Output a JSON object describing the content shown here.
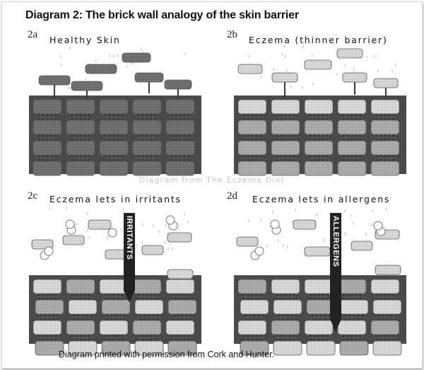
{
  "title": "Diagram 2: The brick wall analogy of the skin barrier",
  "panels": [
    {
      "id": "2a",
      "label": "Healthy Skin"
    },
    {
      "id": "2b",
      "label": "Eczema (thinner barrier)"
    },
    {
      "id": "2c",
      "label": "Eczema lets in irritants",
      "arrow_label": "IRRITANTS"
    },
    {
      "id": "2d",
      "label": "Eczema lets in allergens",
      "arrow_label": "ALLERGENS"
    }
  ],
  "watermark": "Diagram from The Eczema Diet",
  "footer": "Diagram printed with permission from Cork and Hunter.",
  "colors": {
    "brick_dark": "#6e6e6e",
    "brick_mid": "#a9a9a9",
    "brick_light": "#d6d6d6",
    "mortar": "#bdbdbd",
    "base": "#4a4a4a",
    "arrow": "#222222"
  }
}
